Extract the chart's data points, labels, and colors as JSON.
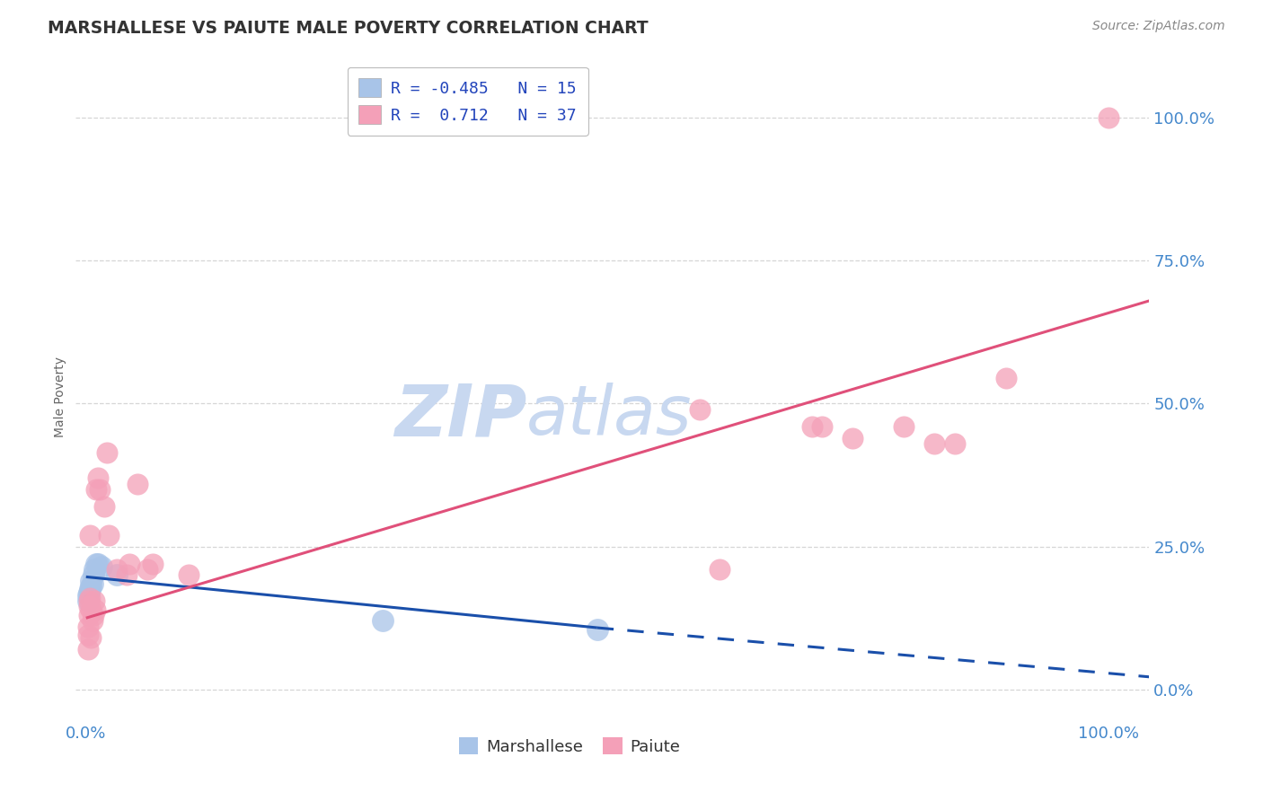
{
  "title": "MARSHALLESE VS PAIUTE MALE POVERTY CORRELATION CHART",
  "source": "Source: ZipAtlas.com",
  "ylabel": "Male Poverty",
  "yticks": [
    0.0,
    0.25,
    0.5,
    0.75,
    1.0
  ],
  "right_ytick_labels": [
    "0.0%",
    "25.0%",
    "50.0%",
    "75.0%",
    "100.0%"
  ],
  "marshallese_R": -0.485,
  "marshallese_N": 15,
  "paiute_R": 0.712,
  "paiute_N": 37,
  "marshallese_color": "#a8c4e8",
  "paiute_color": "#f4a0b8",
  "marshallese_line_color": "#1a4faa",
  "paiute_line_color": "#e0507a",
  "marshallese_points": [
    [
      0.002,
      0.155
    ],
    [
      0.002,
      0.165
    ],
    [
      0.003,
      0.17
    ],
    [
      0.004,
      0.175
    ],
    [
      0.005,
      0.18
    ],
    [
      0.005,
      0.19
    ],
    [
      0.006,
      0.185
    ],
    [
      0.007,
      0.2
    ],
    [
      0.008,
      0.21
    ],
    [
      0.01,
      0.22
    ],
    [
      0.012,
      0.22
    ],
    [
      0.015,
      0.215
    ],
    [
      0.03,
      0.2
    ],
    [
      0.29,
      0.12
    ],
    [
      0.5,
      0.105
    ]
  ],
  "paiute_points": [
    [
      0.002,
      0.07
    ],
    [
      0.002,
      0.095
    ],
    [
      0.002,
      0.11
    ],
    [
      0.003,
      0.13
    ],
    [
      0.003,
      0.145
    ],
    [
      0.003,
      0.155
    ],
    [
      0.004,
      0.16
    ],
    [
      0.004,
      0.27
    ],
    [
      0.005,
      0.09
    ],
    [
      0.005,
      0.14
    ],
    [
      0.006,
      0.12
    ],
    [
      0.007,
      0.13
    ],
    [
      0.008,
      0.155
    ],
    [
      0.009,
      0.14
    ],
    [
      0.01,
      0.35
    ],
    [
      0.012,
      0.37
    ],
    [
      0.013,
      0.35
    ],
    [
      0.018,
      0.32
    ],
    [
      0.02,
      0.415
    ],
    [
      0.022,
      0.27
    ],
    [
      0.03,
      0.21
    ],
    [
      0.04,
      0.2
    ],
    [
      0.042,
      0.22
    ],
    [
      0.05,
      0.36
    ],
    [
      0.06,
      0.21
    ],
    [
      0.065,
      0.22
    ],
    [
      0.1,
      0.2
    ],
    [
      0.6,
      0.49
    ],
    [
      0.62,
      0.21
    ],
    [
      0.71,
      0.46
    ],
    [
      0.72,
      0.46
    ],
    [
      0.75,
      0.44
    ],
    [
      0.8,
      0.46
    ],
    [
      0.83,
      0.43
    ],
    [
      0.85,
      0.43
    ],
    [
      0.9,
      0.545
    ],
    [
      1.0,
      1.0
    ]
  ],
  "background_color": "#ffffff",
  "grid_color": "#cccccc",
  "title_color": "#333333",
  "watermark_zip": "ZIP",
  "watermark_atlas": "atlas",
  "watermark_color_zip": "#c8d8f0",
  "watermark_color_atlas": "#c8d8f0",
  "legend_label_1": "R = -0.485   N = 15",
  "legend_label_2": "R =  0.712   N = 37"
}
